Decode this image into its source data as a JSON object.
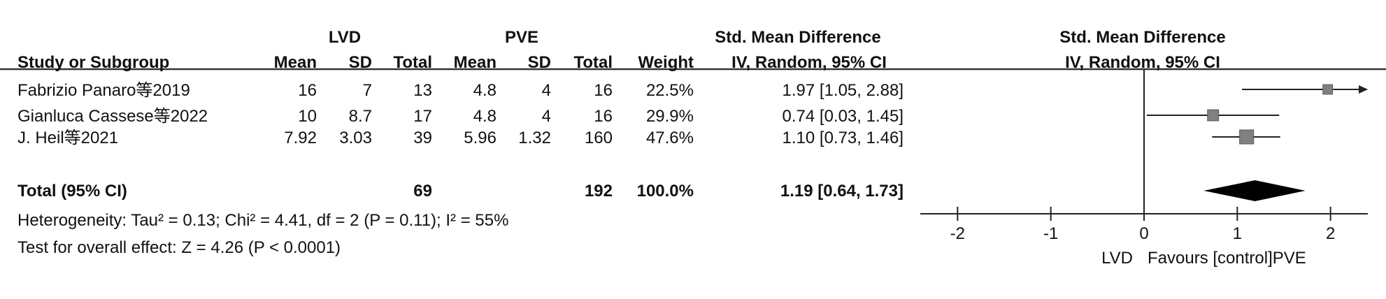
{
  "chart_data": {
    "type": "forest",
    "group_headers": {
      "lvd": "LVD",
      "pve": "PVE",
      "smd": "Std. Mean Difference",
      "plot": "Std. Mean Difference"
    },
    "column_headers": {
      "study": "Study or Subgroup",
      "lvd_mean": "Mean",
      "lvd_sd": "SD",
      "lvd_total": "Total",
      "pve_mean": "Mean",
      "pve_sd": "SD",
      "pve_total": "Total",
      "weight": "Weight",
      "ci": "IV, Random, 95% CI",
      "plot": "IV, Random, 95% CI"
    },
    "studies": [
      {
        "name": "Fabrizio Panaro等2019",
        "lvd_mean": 16,
        "lvd_sd": 7,
        "lvd_total": 13,
        "pve_mean": 4.8,
        "pve_sd": 4,
        "pve_total": 16,
        "weight": 22.5,
        "weight_label": "22.5%",
        "smd": 1.97,
        "ci_lower": 1.05,
        "ci_upper": 2.88,
        "ci_label": "1.97 [1.05, 2.88]"
      },
      {
        "name": "Gianluca Cassese等2022",
        "lvd_mean": 10,
        "lvd_sd": 8.7,
        "lvd_total": 17,
        "pve_mean": 4.8,
        "pve_sd": 4,
        "pve_total": 16,
        "weight": 29.9,
        "weight_label": "29.9%",
        "smd": 0.74,
        "ci_lower": 0.03,
        "ci_upper": 1.45,
        "ci_label": "0.74 [0.03, 1.45]"
      },
      {
        "name": "J. Heil等2021",
        "lvd_mean": 7.92,
        "lvd_sd": 3.03,
        "lvd_total": 39,
        "pve_mean": 5.96,
        "pve_sd": 1.32,
        "pve_total": 160,
        "weight": 47.6,
        "weight_label": "47.6%",
        "smd": 1.1,
        "ci_lower": 0.73,
        "ci_upper": 1.46,
        "ci_label": "1.10 [0.73, 1.46]"
      }
    ],
    "total": {
      "name": "Total (95% CI)",
      "lvd_total": 69,
      "pve_total": 192,
      "weight": 100,
      "weight_label": "100.0%",
      "smd": 1.19,
      "ci_lower": 0.64,
      "ci_upper": 1.73,
      "ci_label": "1.19 [0.64, 1.73]"
    },
    "heterogeneity": "Heterogeneity: Tau² = 0.13; Chi² = 4.41, df = 2 (P = 0.11); I² = 55%",
    "overall_effect": "Test for overall effect: Z = 4.26 (P < 0.0001)",
    "xlim": [
      -2.4,
      2.4
    ],
    "xticks": [
      -2,
      -1,
      0,
      1,
      2
    ],
    "xlabel_left": "LVD",
    "xlabel_right": "Favours [control]PVE",
    "color": "#808080"
  }
}
